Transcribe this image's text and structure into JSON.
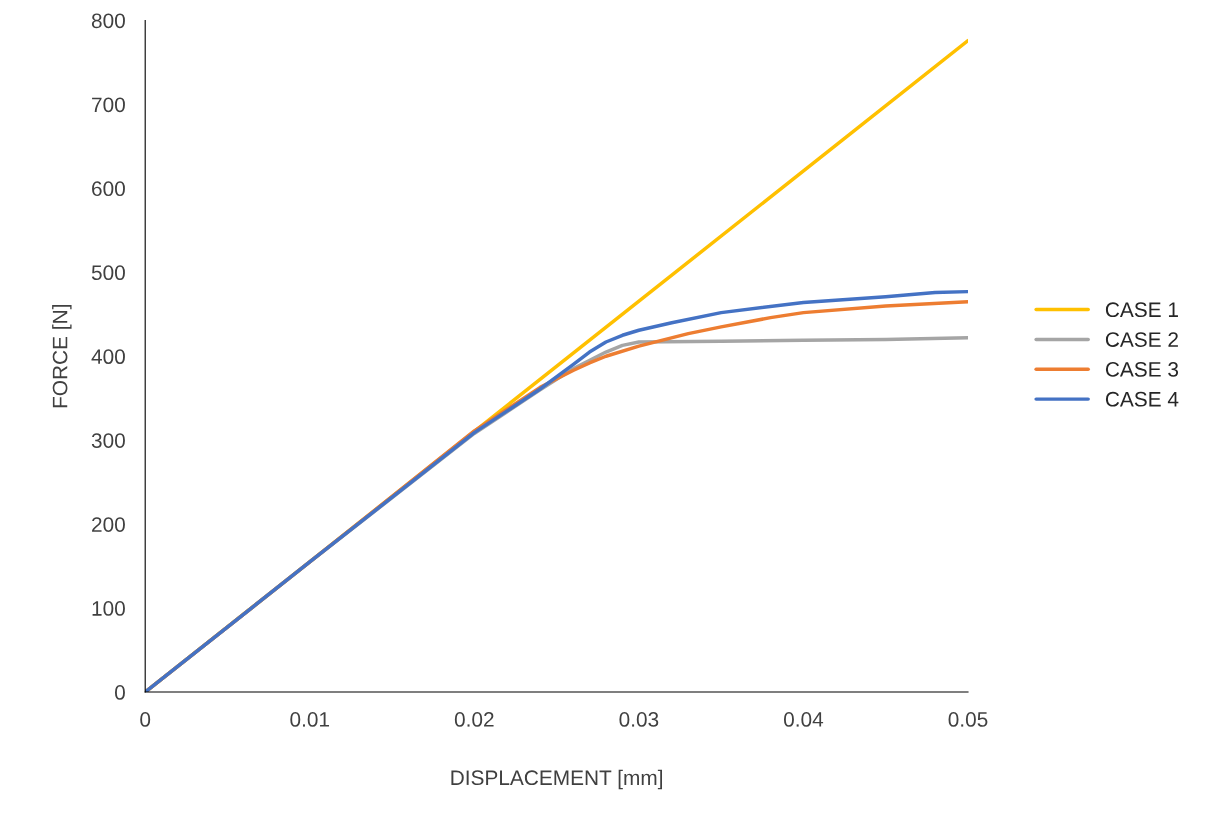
{
  "chart_data": {
    "type": "line",
    "xlabel": "DISPLACEMENT [mm]",
    "ylabel": "FORCE [N]",
    "xlim": [
      0,
      0.05
    ],
    "xticks": [
      {
        "value": 0,
        "label": "0"
      },
      0.01,
      0.02,
      0.03,
      0.04,
      0.05
    ],
    "ylim": [
      0,
      800
    ],
    "yticks": [
      0,
      100,
      200,
      300,
      400,
      500,
      600,
      700,
      800
    ],
    "grid": false,
    "legend": "right",
    "marker": "none",
    "line_style": "solid",
    "series": [
      {
        "name": "CASE 1",
        "color": "#ffc000",
        "x": [
          0,
          0.05
        ],
        "values": [
          0,
          776
        ]
      },
      {
        "name": "CASE 2",
        "color": "#a5a5a5",
        "x": [
          0,
          0.01,
          0.02,
          0.024,
          0.026,
          0.028,
          0.029,
          0.03,
          0.035,
          0.04,
          0.045,
          0.05
        ],
        "values": [
          0,
          155,
          308,
          360,
          385,
          405,
          413,
          417,
          418,
          419,
          420,
          422
        ]
      },
      {
        "name": "CASE 3",
        "color": "#ed7d31",
        "x": [
          0,
          0.01,
          0.02,
          0.024,
          0.026,
          0.027,
          0.028,
          0.03,
          0.033,
          0.035,
          0.038,
          0.04,
          0.045,
          0.05
        ],
        "values": [
          0,
          155,
          311,
          363,
          383,
          392,
          400,
          412,
          427,
          435,
          446,
          452,
          460,
          465
        ]
      },
      {
        "name": "CASE 4",
        "color": "#4472c4",
        "x": [
          0,
          0.01,
          0.02,
          0.024,
          0.026,
          0.027,
          0.028,
          0.029,
          0.03,
          0.032,
          0.035,
          0.04,
          0.045,
          0.048,
          0.05
        ],
        "values": [
          0,
          155,
          309,
          361,
          390,
          405,
          417,
          425,
          431,
          440,
          452,
          464,
          471,
          476,
          477
        ]
      }
    ]
  }
}
